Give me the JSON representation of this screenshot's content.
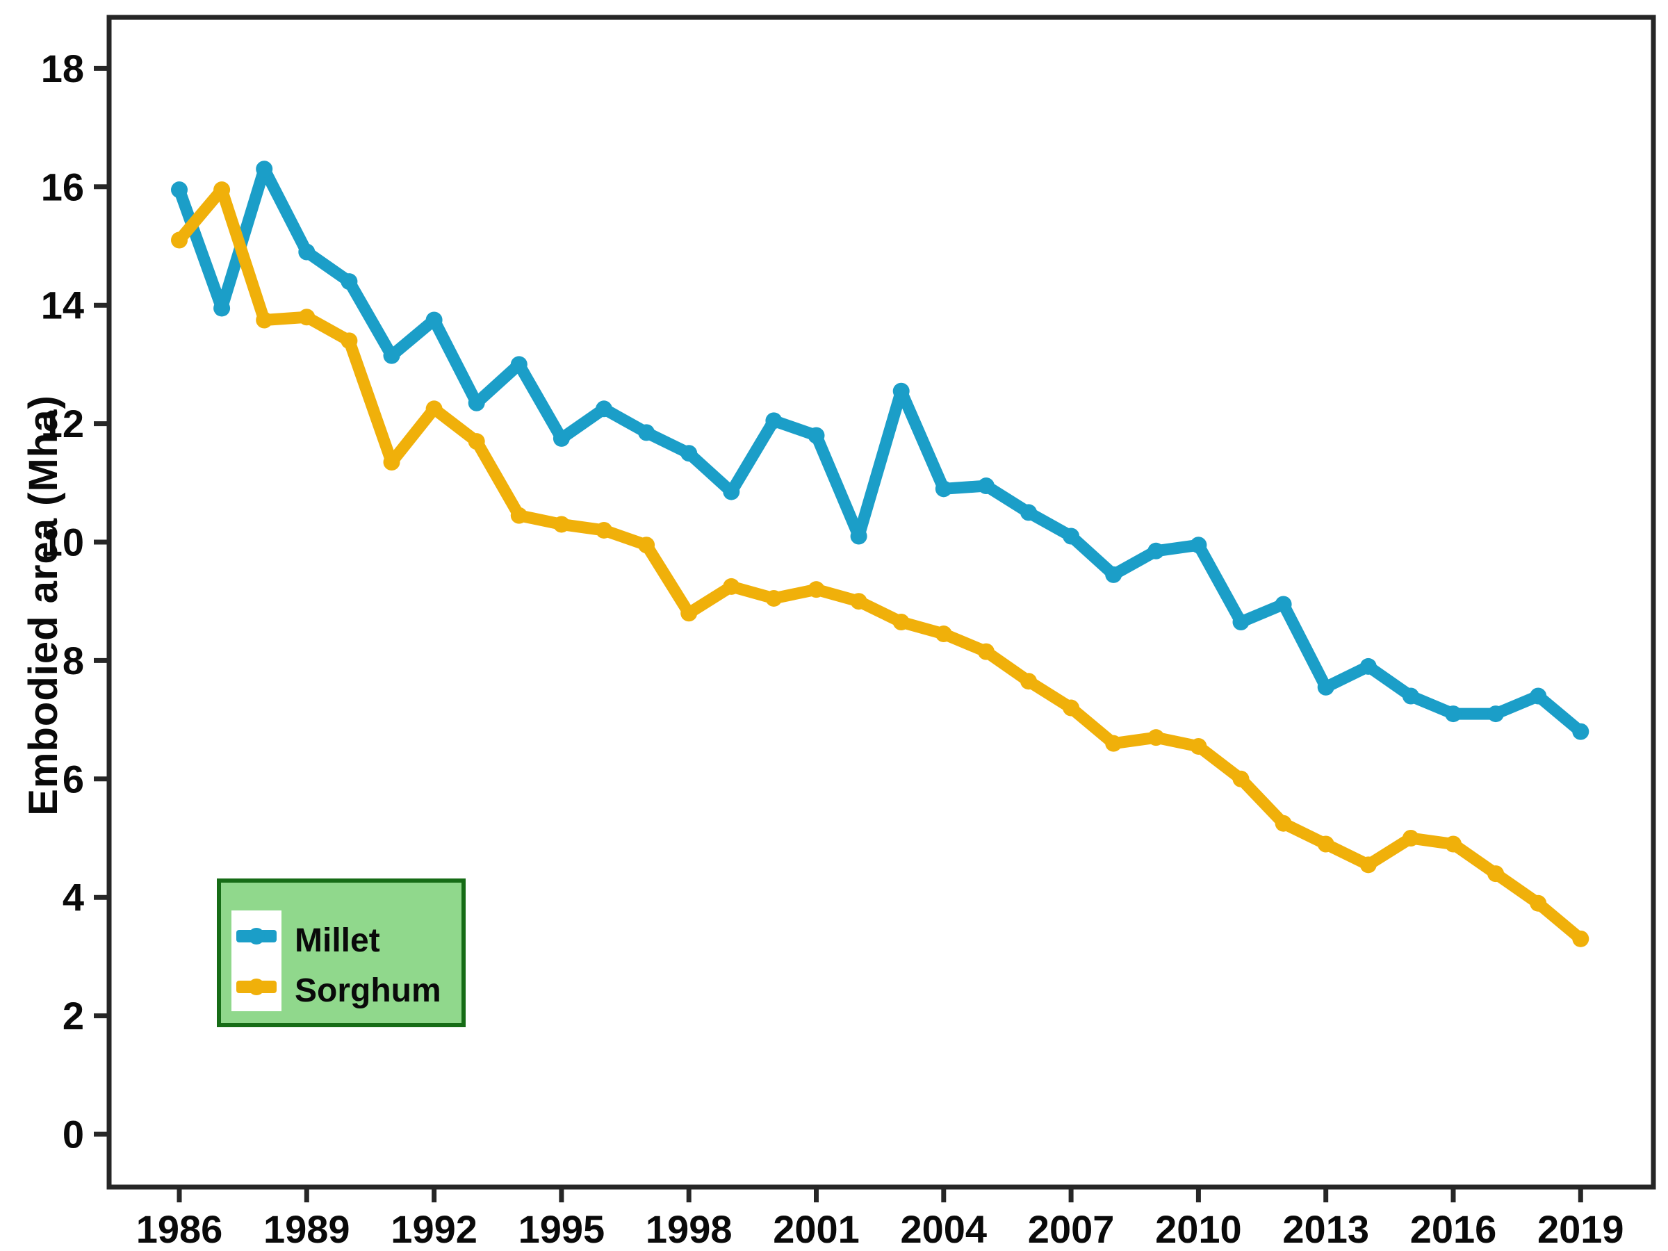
{
  "figure": {
    "background": "#ffffff",
    "axis_color": "#262626",
    "text_color": "#0a0a0a"
  },
  "legend_box": {
    "fill": "#90D88C",
    "border_color": "#166C16",
    "swatch_panel_color": "#ffffff",
    "position": "lower left"
  },
  "chart_data": {
    "type": "line",
    "title": "",
    "xlabel": "",
    "ylabel": "Embodied area (Mha)",
    "grid": false,
    "legend_position": "lower left",
    "xlim": [
      1984.3,
      2020.7
    ],
    "ylim": [
      -0.9,
      18.9
    ],
    "xticks": [
      1986,
      1989,
      1992,
      1995,
      1998,
      2001,
      2004,
      2007,
      2010,
      2013,
      2016,
      2019
    ],
    "yticks": [
      0,
      2,
      4,
      6,
      8,
      10,
      12,
      14,
      16,
      18
    ],
    "x": [
      1986,
      1987,
      1988,
      1989,
      1990,
      1991,
      1992,
      1993,
      1994,
      1995,
      1996,
      1997,
      1998,
      1999,
      2000,
      2001,
      2002,
      2003,
      2004,
      2005,
      2006,
      2007,
      2008,
      2009,
      2010,
      2011,
      2012,
      2013,
      2014,
      2015,
      2016,
      2017,
      2018,
      2019
    ],
    "series": [
      {
        "name": "Millet",
        "color": "#1B9EC8",
        "values": [
          15.95,
          13.95,
          16.3,
          14.9,
          14.4,
          13.15,
          13.75,
          12.35,
          13.0,
          11.75,
          12.25,
          11.85,
          11.5,
          10.85,
          12.05,
          11.8,
          10.1,
          12.55,
          10.9,
          10.95,
          10.5,
          10.1,
          9.45,
          9.85,
          9.95,
          8.65,
          8.95,
          7.55,
          7.9,
          7.4,
          7.1,
          7.1,
          7.4,
          6.8
        ]
      },
      {
        "name": "Sorghum",
        "color": "#F0B00A",
        "values": [
          15.1,
          15.95,
          13.75,
          13.8,
          13.4,
          11.35,
          12.25,
          11.7,
          10.45,
          10.3,
          10.2,
          9.95,
          8.8,
          9.25,
          9.05,
          9.2,
          9.0,
          8.65,
          8.45,
          8.15,
          7.65,
          7.2,
          6.6,
          6.7,
          6.55,
          6.0,
          5.25,
          4.9,
          4.55,
          5.0,
          4.9,
          4.4,
          3.9,
          3.3
        ]
      }
    ]
  }
}
